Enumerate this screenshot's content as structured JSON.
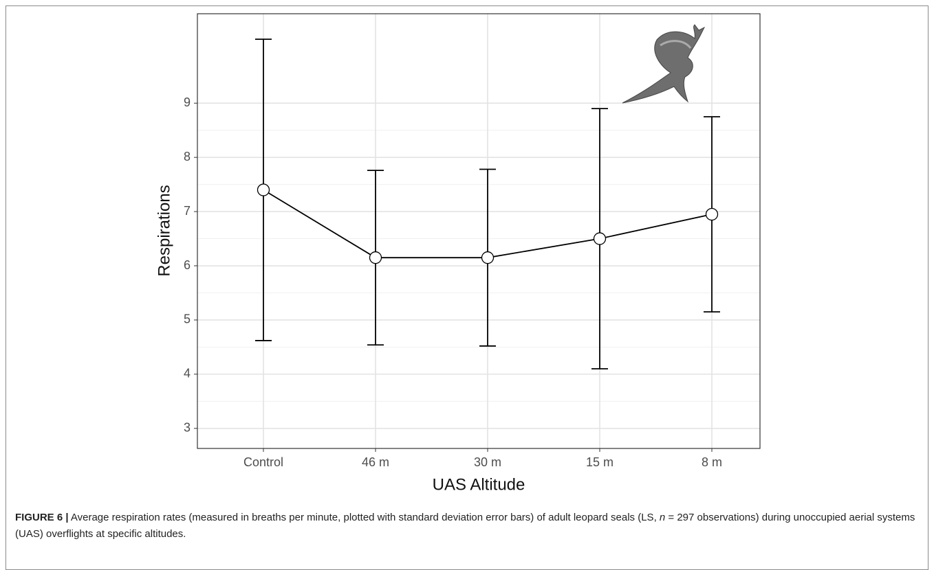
{
  "chart_data": {
    "type": "line",
    "xlabel": "UAS Altitude",
    "ylabel": "Respirations",
    "categories": [
      "Control",
      "46 m",
      "30 m",
      "15 m",
      "8 m"
    ],
    "values": [
      7.4,
      6.15,
      6.15,
      6.5,
      6.95
    ],
    "errors": [
      2.78,
      1.61,
      1.63,
      2.4,
      1.8
    ],
    "color": "#000000",
    "ylim": [
      2.63,
      10.65
    ],
    "yticks": [
      3,
      4,
      5,
      6,
      7,
      8,
      9
    ],
    "grid": true,
    "minor_grid": true
  },
  "caption": {
    "label": "FIGURE 6 |",
    "text_before": "Average respiration rates (measured in breaths per minute, plotted with standard deviation error bars) of adult leopard seals (LS, ",
    "italic": "n",
    "text_after": " = 297 observations) during unoccupied aerial systems (UAS) overflights at specific altitudes."
  }
}
